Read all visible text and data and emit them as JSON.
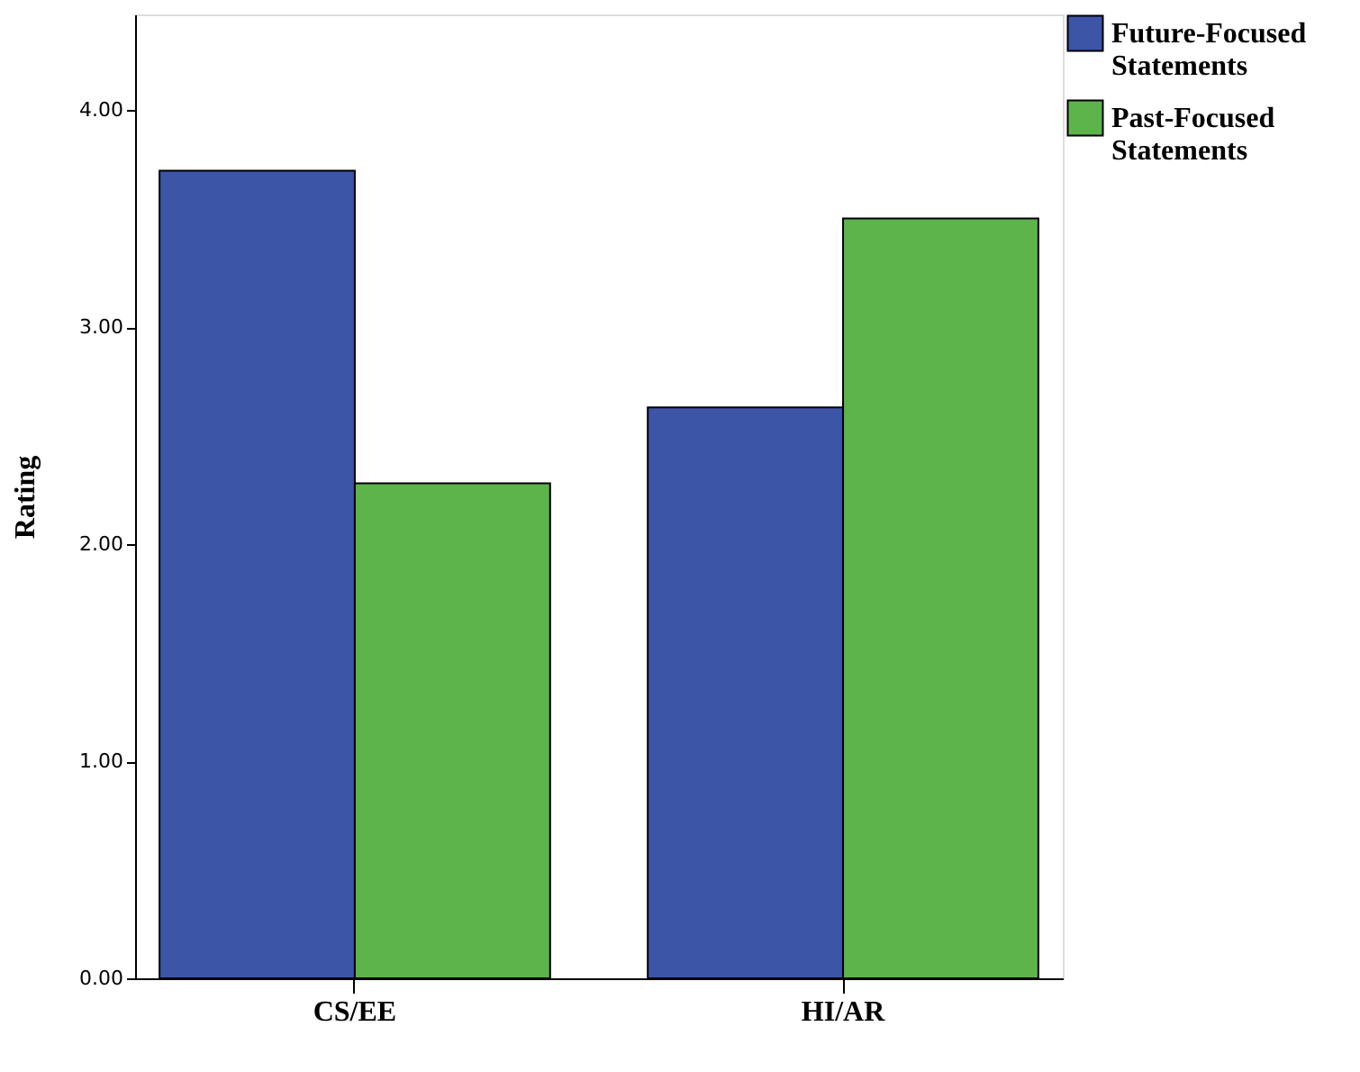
{
  "chart_data": {
    "type": "bar",
    "ylabel": "Rating",
    "categories": [
      "CS/EE",
      "HI/AR"
    ],
    "series": [
      {
        "name": "Future-Focused Statements",
        "color": "#3d55a6",
        "values": [
          3.72,
          2.63
        ]
      },
      {
        "name": "Past-Focused Statements",
        "color": "#5db44b",
        "values": [
          2.28,
          3.5
        ]
      }
    ],
    "ylim": [
      0,
      4.44
    ],
    "yticks": [
      {
        "value": 0,
        "label": "0.00"
      },
      {
        "value": 1,
        "label": "1.00"
      },
      {
        "value": 2,
        "label": "2.00"
      },
      {
        "value": 3,
        "label": "3.00"
      },
      {
        "value": 4,
        "label": "4.00"
      }
    ],
    "grid": false,
    "legend": "top right"
  }
}
